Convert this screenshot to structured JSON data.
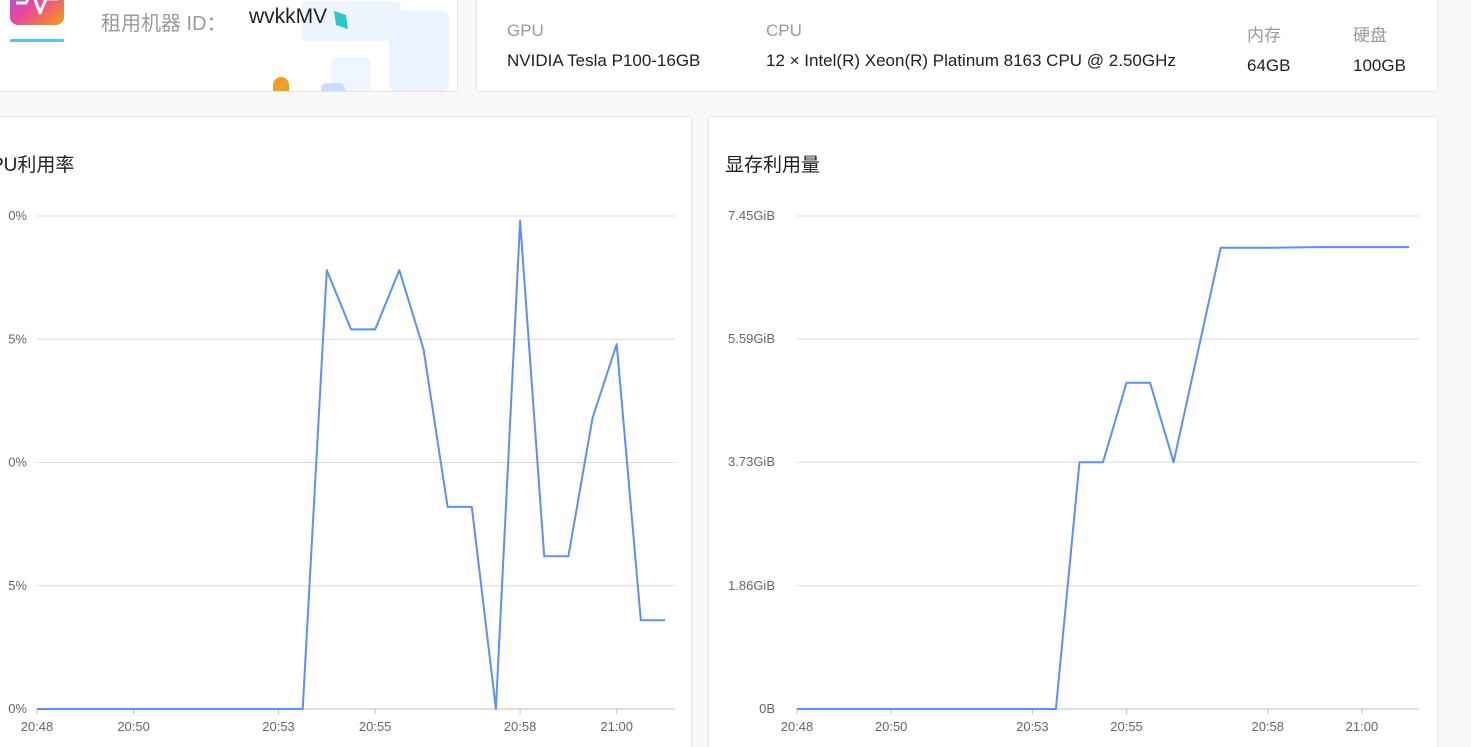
{
  "machine": {
    "label": "租用机器 ID：",
    "id": "wvkkMV",
    "logo_icon": "activity-chart-icon"
  },
  "specs": [
    {
      "key": "GPU",
      "value": "NVIDIA Tesla P100-16GB"
    },
    {
      "key": "CPU",
      "value": "12 × Intel(R) Xeon(R) Platinum 8163 CPU @ 2.50GHz"
    },
    {
      "key": "内存",
      "value": "64GB"
    },
    {
      "key": "硬盘",
      "value": "100GB"
    }
  ],
  "colors": {
    "line": "#5b8ff9",
    "grid": "#d9d9d9",
    "axis": "#bfbfbf"
  },
  "chart_data": [
    {
      "type": "line",
      "title": "PU利用率",
      "ytick_labels": [
        "0%",
        "5%",
        "0%",
        "5%",
        "0%"
      ],
      "ylim": [
        0,
        100
      ],
      "xticks": [
        "20:48",
        "20:50",
        "20:53",
        "20:55",
        "20:58",
        "21:00"
      ],
      "xlim": [
        "20:48",
        "21:01"
      ],
      "grid": true,
      "series": [
        {
          "x": [
            "20:48:00",
            "20:49:00",
            "20:50:00",
            "20:51:00",
            "20:52:00",
            "20:53:00",
            "20:53:30",
            "20:54:00",
            "20:54:30",
            "20:55:00",
            "20:55:30",
            "20:56:00",
            "20:56:30",
            "20:57:00",
            "20:57:30",
            "20:58:00",
            "20:58:30",
            "20:59:00",
            "20:59:30",
            "21:00:00",
            "21:00:30",
            "21:01:00"
          ],
          "values": [
            0,
            0,
            0,
            0,
            0,
            0,
            0,
            89,
            77,
            77,
            89,
            73,
            41,
            41,
            0,
            99,
            31,
            31,
            59,
            74,
            18,
            18
          ]
        }
      ]
    },
    {
      "type": "line",
      "title": "显存利用量",
      "ytick_labels": [
        "0B",
        "1.86GiB",
        "3.73GiB",
        "5.59GiB",
        "7.45GiB"
      ],
      "yticks": [
        0,
        1.86,
        3.73,
        5.59,
        7.45
      ],
      "ylim": [
        0,
        7.45
      ],
      "xticks": [
        "20:48",
        "20:50",
        "20:53",
        "20:55",
        "20:58",
        "21:00"
      ],
      "xlim": [
        "20:48",
        "21:01"
      ],
      "grid": true,
      "series": [
        {
          "x": [
            "20:48:00",
            "20:50:00",
            "20:52:00",
            "20:53:00",
            "20:53:30",
            "20:54:00",
            "20:54:30",
            "20:55:00",
            "20:55:30",
            "20:56:00",
            "20:57:00",
            "20:58:00",
            "20:59:00",
            "21:00:00",
            "21:00:30",
            "21:01:00"
          ],
          "values": [
            0,
            0,
            0,
            0,
            0,
            3.73,
            3.73,
            4.93,
            4.93,
            3.73,
            6.97,
            6.97,
            6.98,
            6.98,
            6.98,
            6.98
          ]
        }
      ]
    }
  ]
}
